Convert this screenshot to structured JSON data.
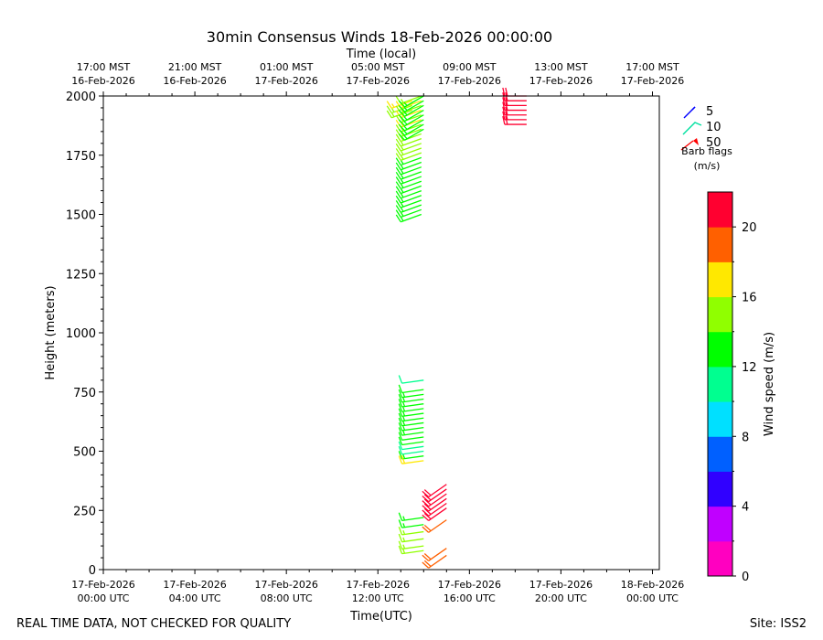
{
  "chart_data": {
    "type": "wind-barb",
    "title": "30min Consensus Winds 18-Feb-2026 00:00:00",
    "top_axis_label": "Time (local)",
    "xlabel": "Time(UTC)",
    "ylabel": "Height (meters)",
    "colorbar_label": "Wind speed (m/s)",
    "footer_left": "REAL TIME DATA, NOT CHECKED FOR QUALITY",
    "footer_right": "Site: ISS2",
    "xlim": [
      0,
      24.3
    ],
    "ylim": [
      0,
      2000
    ],
    "y_ticks": [
      0,
      250,
      500,
      750,
      1000,
      1250,
      1500,
      1750,
      2000
    ],
    "y_tick_labels": [
      "0",
      "250",
      "500",
      "750",
      "1000",
      "1250",
      "1500",
      "1750",
      "2000"
    ],
    "bottom_ticks": [
      {
        "x": 0,
        "line1": "17-Feb-2026",
        "line2": "00:00 UTC"
      },
      {
        "x": 4,
        "line1": "17-Feb-2026",
        "line2": "04:00 UTC"
      },
      {
        "x": 8,
        "line1": "17-Feb-2026",
        "line2": "08:00 UTC"
      },
      {
        "x": 12,
        "line1": "17-Feb-2026",
        "line2": "12:00 UTC"
      },
      {
        "x": 16,
        "line1": "17-Feb-2026",
        "line2": "16:00 UTC"
      },
      {
        "x": 20,
        "line1": "17-Feb-2026",
        "line2": "20:00 UTC"
      },
      {
        "x": 24,
        "line1": "18-Feb-2026",
        "line2": "00:00 UTC"
      }
    ],
    "top_ticks": [
      {
        "x": 0,
        "line1": "17:00 MST",
        "line2": "16-Feb-2026"
      },
      {
        "x": 4,
        "line1": "21:00 MST",
        "line2": "16-Feb-2026"
      },
      {
        "x": 8,
        "line1": "01:00 MST",
        "line2": "17-Feb-2026"
      },
      {
        "x": 12,
        "line1": "05:00 MST",
        "line2": "17-Feb-2026"
      },
      {
        "x": 16,
        "line1": "09:00 MST",
        "line2": "17-Feb-2026"
      },
      {
        "x": 20,
        "line1": "13:00 MST",
        "line2": "17-Feb-2026"
      },
      {
        "x": 24,
        "line1": "17:00 MST",
        "line2": "17-Feb-2026"
      }
    ],
    "legend": {
      "items": [
        {
          "label": "5",
          "color": "#0000ff"
        },
        {
          "label": "10",
          "color": "#00e0a0"
        },
        {
          "label": "50",
          "color": "#ff0000"
        }
      ],
      "title_line1": "Barb flags",
      "title_line2": "(m/s)"
    },
    "colorbar": {
      "min": 0,
      "max": 22,
      "ticks": [
        0,
        4,
        8,
        12,
        16,
        20
      ],
      "tick_labels": [
        "0",
        "4",
        "8",
        "12",
        "16",
        "20"
      ],
      "colors": [
        "#ff00c0",
        "#c000ff",
        "#3000ff",
        "#0060ff",
        "#00e0ff",
        "#00ff90",
        "#00ff00",
        "#90ff00",
        "#ffe800",
        "#ff6000",
        "#ff0030"
      ]
    },
    "series": [
      {
        "name": "profile-13.5h",
        "time": 13.5,
        "heights": [
          1980,
          1960,
          1940
        ],
        "speeds": [
          16,
          15.5,
          15
        ],
        "direction": 250
      },
      {
        "name": "profile-13.9h",
        "time": 13.9,
        "heights": [
          2000,
          1980,
          1960,
          1940,
          1920,
          1900,
          1880,
          1860,
          1840,
          1820,
          1800,
          1780,
          1760,
          1740,
          1720,
          1700,
          1680,
          1660,
          1640,
          1620,
          1600,
          1580,
          1560,
          1540,
          1520,
          1500
        ],
        "speeds": [
          15.5,
          16,
          15.5,
          16,
          15.5,
          16,
          15.5,
          15,
          14.5,
          15,
          14.5,
          14,
          14,
          13.5,
          13,
          13,
          13,
          13.5,
          13,
          13,
          13.5,
          13,
          13,
          12.5,
          13,
          13
        ],
        "direction": 250
      },
      {
        "name": "profile-14.0h",
        "time": 14.0,
        "heights": [
          2000,
          1980,
          1960,
          1940,
          1920,
          1900,
          1880,
          1860
        ],
        "speeds": [
          13,
          13,
          12.5,
          13,
          13,
          12.5,
          13,
          13
        ],
        "direction": 240
      },
      {
        "name": "profile-14.5h-lower",
        "time": 14.0,
        "heights": [
          800,
          760,
          740,
          720,
          700,
          680,
          660,
          640,
          620,
          600,
          580,
          560,
          540,
          520,
          500,
          480,
          460
        ],
        "speeds": [
          11.5,
          12,
          13,
          13,
          12.5,
          13,
          13,
          13,
          13,
          12.5,
          12.5,
          12,
          12,
          11.5,
          11.5,
          13,
          17.5
        ],
        "direction": 262
      },
      {
        "name": "profile-14.5h-surface",
        "time": 14.0,
        "heights": [
          220,
          190,
          160,
          130,
          100,
          80
        ],
        "speeds": [
          13.5,
          13,
          14.5,
          14.5,
          15,
          15
        ],
        "direction": 262
      },
      {
        "name": "profile-15.0h",
        "time": 15.0,
        "heights": [
          360,
          340,
          320,
          300,
          280,
          260,
          210,
          90,
          60
        ],
        "speeds": [
          21,
          21,
          21,
          21,
          21,
          21,
          19,
          19,
          19.5
        ],
        "direction": 235
      },
      {
        "name": "profile-18.5h",
        "time": 18.5,
        "heights": [
          2000,
          1980,
          1960,
          1940,
          1920,
          1900,
          1880
        ],
        "speeds": [
          21,
          21,
          21,
          21,
          21,
          21,
          21
        ],
        "direction": 270
      }
    ]
  }
}
